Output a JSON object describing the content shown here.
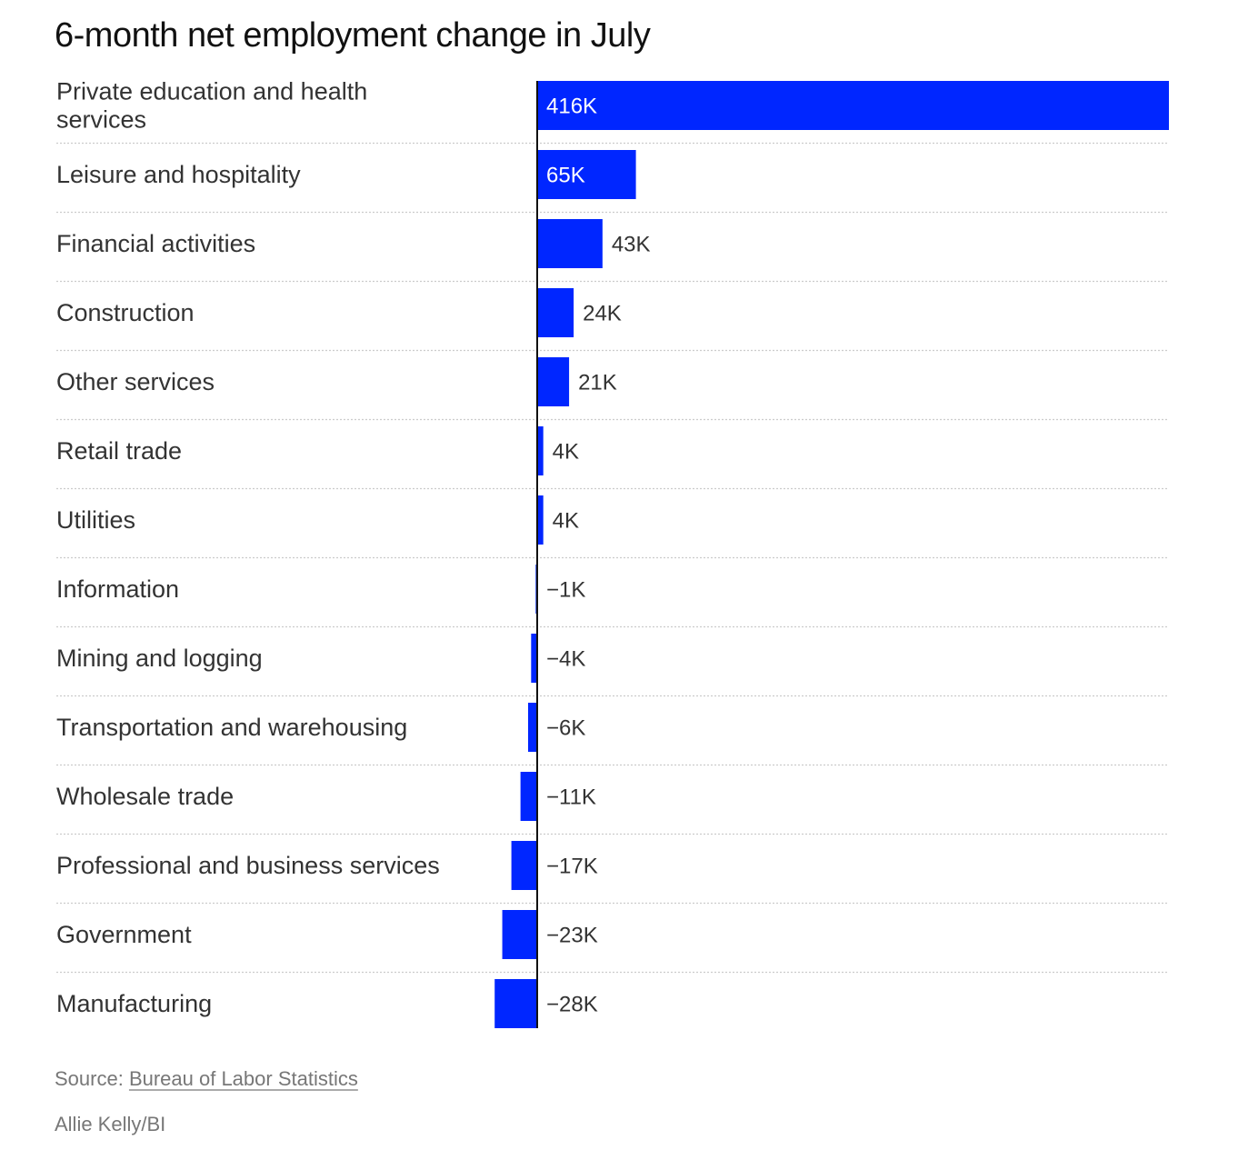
{
  "chart_data": {
    "type": "bar",
    "orientation": "horizontal",
    "title": "6-month net employment change in July",
    "categories": [
      "Private education and health services",
      "Leisure and hospitality",
      "Financial activities",
      "Construction",
      "Other services",
      "Retail trade",
      "Utilities",
      "Information",
      "Mining and logging",
      "Transportation and warehousing",
      "Wholesale trade",
      "Professional and business services",
      "Government",
      "Manufacturing"
    ],
    "label_lines": [
      [
        "Private education and health",
        "services"
      ],
      [
        "Leisure and hospitality"
      ],
      [
        "Financial activities"
      ],
      [
        "Construction"
      ],
      [
        "Other services"
      ],
      [
        "Retail trade"
      ],
      [
        "Utilities"
      ],
      [
        "Information"
      ],
      [
        "Mining and logging"
      ],
      [
        "Transportation and warehousing"
      ],
      [
        "Wholesale trade"
      ],
      [
        "Professional and business services"
      ],
      [
        "Government"
      ],
      [
        "Manufacturing"
      ]
    ],
    "values": [
      416,
      65,
      43,
      24,
      21,
      4,
      4,
      -1,
      -4,
      -6,
      -11,
      -17,
      -23,
      -28
    ],
    "value_labels": [
      "416K",
      "65K",
      "43K",
      "24K",
      "21K",
      "4K",
      "4K",
      "−1K",
      "−4K",
      "−6K",
      "−11K",
      "−17K",
      "−23K",
      "−28K"
    ],
    "xlim": [
      -28,
      416
    ],
    "units": "thousands of jobs",
    "xlabel": "",
    "ylabel": "",
    "grid": false,
    "legend": "none",
    "bar_color": "#0026ff",
    "axis_color": "#111111",
    "separator_color": "#cccccc"
  },
  "footer": {
    "source_prefix": "Source: ",
    "source_name": "Bureau of Labor Statistics",
    "credit": "Allie Kelly/BI"
  }
}
